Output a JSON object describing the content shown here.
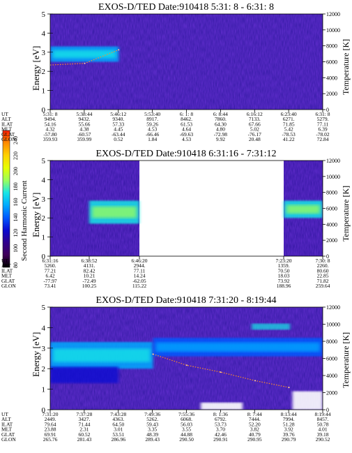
{
  "colorbar": {
    "label": "Second Harmonic Current",
    "ticks": [
      "240",
      "220",
      "200",
      "180",
      "160",
      "140",
      "120",
      "100",
      "80"
    ],
    "stops": [
      "#ff1e00",
      "#ff8c00",
      "#ffd200",
      "#e6ff00",
      "#9bff5a",
      "#19e6e6",
      "#00aaff",
      "#005aff",
      "#0a0ad2",
      "#30008c",
      "#40005a",
      "#000000"
    ]
  },
  "panels": [
    {
      "title": "EXOS-D/TED   Date:910418   5:31: 8 - 6:31: 8",
      "ylabel": "Energy [eV]",
      "y2label": "Temperature [K]",
      "yticks": [
        "0",
        "1",
        "2",
        "3",
        "4",
        "5"
      ],
      "y2ticks": [
        "0",
        "2000",
        "4000",
        "6000",
        "8000",
        "10000",
        "12000"
      ],
      "row_labels": [
        "UT",
        "ALT",
        "ILAT",
        "MLT",
        "GLAT",
        "GLON"
      ],
      "columns": [
        [
          "5:31: 8",
          "9494.",
          "54.16",
          "4.32",
          "-57.80",
          "359.93"
        ],
        [
          "5:38:44",
          "9432.",
          "55.66",
          "4.38",
          "-60.57",
          "359.99"
        ],
        [
          "5:46:12",
          "9340.",
          "57.33",
          "4.45",
          "-63.44",
          "0.52"
        ],
        [
          "5:53:40",
          "8917.",
          "59.26",
          "4.53",
          "-66.46",
          "1.84"
        ],
        [
          "6: 1: 8",
          "8462.",
          "61.53",
          "4.64",
          "-69.63",
          "4.53"
        ],
        [
          "6: 8:44",
          "7860.",
          "64.30",
          "4.80",
          "-72.98",
          "9.92"
        ],
        [
          "6:16:12",
          "7133.",
          "67.66",
          "5.02",
          "-76.17",
          "20.48"
        ],
        [
          "6:23:40",
          "6271.",
          "71.85",
          "5.42",
          "-78.53",
          "41.22"
        ],
        [
          "6:31: 8",
          "5279.",
          "77.11",
          "6.39",
          "-78.02",
          "72.84"
        ]
      ]
    },
    {
      "title": "EXOS-D/TED   Date:910418   6:31:16 - 7:31:12",
      "ylabel": "Energy [eV]",
      "y2label": "Temperature [K]",
      "yticks": [
        "0",
        "1",
        "2",
        "3",
        "4",
        "5"
      ],
      "y2ticks": [
        "0",
        "2000",
        "4000",
        "6000",
        "8000",
        "10000",
        "12000"
      ],
      "row_labels": [
        "UT",
        "ALT",
        "ILAT",
        "MLT",
        "GLAT",
        "GLON"
      ],
      "columns": [
        [
          "6:31:16",
          "5260.",
          "77.21",
          "6.42",
          "-77.97",
          "73.41"
        ],
        [
          "6:38:52",
          "4131.",
          "82.42",
          "10.21",
          "-72.49",
          "100.25"
        ],
        [
          "6:46:20",
          "2944.",
          "77.11",
          "14.24",
          "-62.05",
          "115.22"
        ],
        [
          "7:23:20",
          "1359.",
          "70.50",
          "18.03",
          "73.92",
          "188.96"
        ],
        [
          "7:30: 8",
          "2260.",
          "80.60",
          "22.85",
          "71.82",
          "259.64"
        ]
      ]
    },
    {
      "title": "EXOS-D/TED   Date:910418   7:31:20 - 8:19:44",
      "ylabel": "Energy [eV]",
      "y2label": "Temperature [K]",
      "yticks": [
        "0",
        "1",
        "2",
        "3",
        "4",
        "5"
      ],
      "y2ticks": [
        "0",
        "2000",
        "4000",
        "6000",
        "8000",
        "10000",
        "12000"
      ],
      "row_labels": [
        "UT",
        "ALT",
        "ILAT",
        "MLT",
        "GLAT",
        "GLON"
      ],
      "columns": [
        [
          "7:31:20",
          "2449.",
          "79.64",
          "23.88",
          "69.91",
          "265.76"
        ],
        [
          "7:37:28",
          "3427.",
          "71.44",
          "2.31",
          "60.52",
          "281.43"
        ],
        [
          "7:43:28",
          "4363.",
          "64.50",
          "3.01",
          "53.51",
          "286.96"
        ],
        [
          "7:49:36",
          "5262.",
          "59.43",
          "3.35",
          "48.39",
          "289.43"
        ],
        [
          "7:55:36",
          "6068.",
          "56.03",
          "3.55",
          "44.88",
          "290.50"
        ],
        [
          "8: 1:36",
          "6792.",
          "53.73",
          "3.70",
          "42.46",
          "290.91"
        ],
        [
          "8: 7:44",
          "7444.",
          "52.20",
          "3.82",
          "40.79",
          "290.95"
        ],
        [
          "8:13:44",
          "7994.",
          "51.28",
          "3.92",
          "39.76",
          "290.79"
        ],
        [
          "8:19:44",
          "8457.",
          "50.78",
          "4.01",
          "39.18",
          "290.52"
        ]
      ]
    }
  ],
  "chart_data": [
    {
      "type": "heatmap",
      "title": "EXOS-D/TED   Date:910418   5:31: 8 - 6:31: 8",
      "xlabel": "UT",
      "ylabel": "Energy [eV]",
      "y2label": "Temperature [K]",
      "ylim": [
        0,
        5
      ],
      "y2lim": [
        0,
        12000
      ],
      "x_ticks": [
        "5:31: 8",
        "5:38:44",
        "5:46:12",
        "5:53:40",
        "6: 1: 8",
        "6: 8:44",
        "6:16:12",
        "6:23:40",
        "6:31: 8"
      ],
      "colorbar_label": "Second Harmonic Current",
      "colorbar_range": [
        80,
        240
      ],
      "bands": [
        {
          "x_start": "5:31: 8",
          "x_end": "5:46:12",
          "energy_low": 2.5,
          "energy_high": 3.3,
          "intensity": 150
        },
        {
          "x_start": "5:31: 8",
          "x_end": "6:31: 8",
          "energy_low": 0,
          "energy_high": 5,
          "intensity": 120
        }
      ],
      "temperature_trace": [
        {
          "x": "5:31: 8",
          "y": 5600
        },
        {
          "x": "5:38:44",
          "y": 5800
        },
        {
          "x": "5:46:12",
          "y": 7500
        }
      ]
    },
    {
      "type": "heatmap",
      "title": "EXOS-D/TED   Date:910418   6:31:16 - 7:31:12",
      "xlabel": "UT",
      "ylabel": "Energy [eV]",
      "y2label": "Temperature [K]",
      "ylim": [
        0,
        5
      ],
      "y2lim": [
        0,
        12000
      ],
      "x_ticks": [
        "6:31:16",
        "6:38:52",
        "6:46:20",
        "7:23:20",
        "7:30: 8"
      ],
      "colorbar_label": "Second Harmonic Current",
      "colorbar_range": [
        80,
        240
      ],
      "bands": [
        {
          "x_start": "6:38:52",
          "x_end": "6:46:20",
          "energy_low": 1.7,
          "energy_high": 2.9,
          "intensity": 165
        },
        {
          "x_start": "7:23:20",
          "x_end": "7:30: 8",
          "energy_low": 2.0,
          "energy_high": 2.9,
          "intensity": 165
        }
      ],
      "data_gap": [
        "6:46:20",
        "7:23:20"
      ]
    },
    {
      "type": "heatmap",
      "title": "EXOS-D/TED   Date:910418   7:31:20 - 8:19:44",
      "xlabel": "UT",
      "ylabel": "Energy [eV]",
      "y2label": "Temperature [K]",
      "ylim": [
        0,
        5
      ],
      "y2lim": [
        0,
        12000
      ],
      "x_ticks": [
        "7:31:20",
        "7:37:28",
        "7:43:28",
        "7:49:36",
        "7:55:36",
        "8: 1:36",
        "8: 7:44",
        "8:13:44",
        "8:19:44"
      ],
      "colorbar_label": "Second Harmonic Current",
      "colorbar_range": [
        80,
        240
      ],
      "bands": [
        {
          "x_start": "7:31:20",
          "x_end": "7:49:36",
          "energy_low": 2.0,
          "energy_high": 3.3,
          "intensity": 150
        },
        {
          "x_start": "7:49:36",
          "x_end": "8:19:44",
          "energy_low": 2.6,
          "energy_high": 3.5,
          "intensity": 145
        }
      ],
      "temperature_trace": [
        {
          "x": "7:49:36",
          "y": 6500
        },
        {
          "x": "7:55:36",
          "y": 5200
        },
        {
          "x": "8: 1:36",
          "y": 4400
        },
        {
          "x": "8: 7:44",
          "y": 3400
        },
        {
          "x": "8:13:44",
          "y": 2600
        }
      ]
    }
  ]
}
